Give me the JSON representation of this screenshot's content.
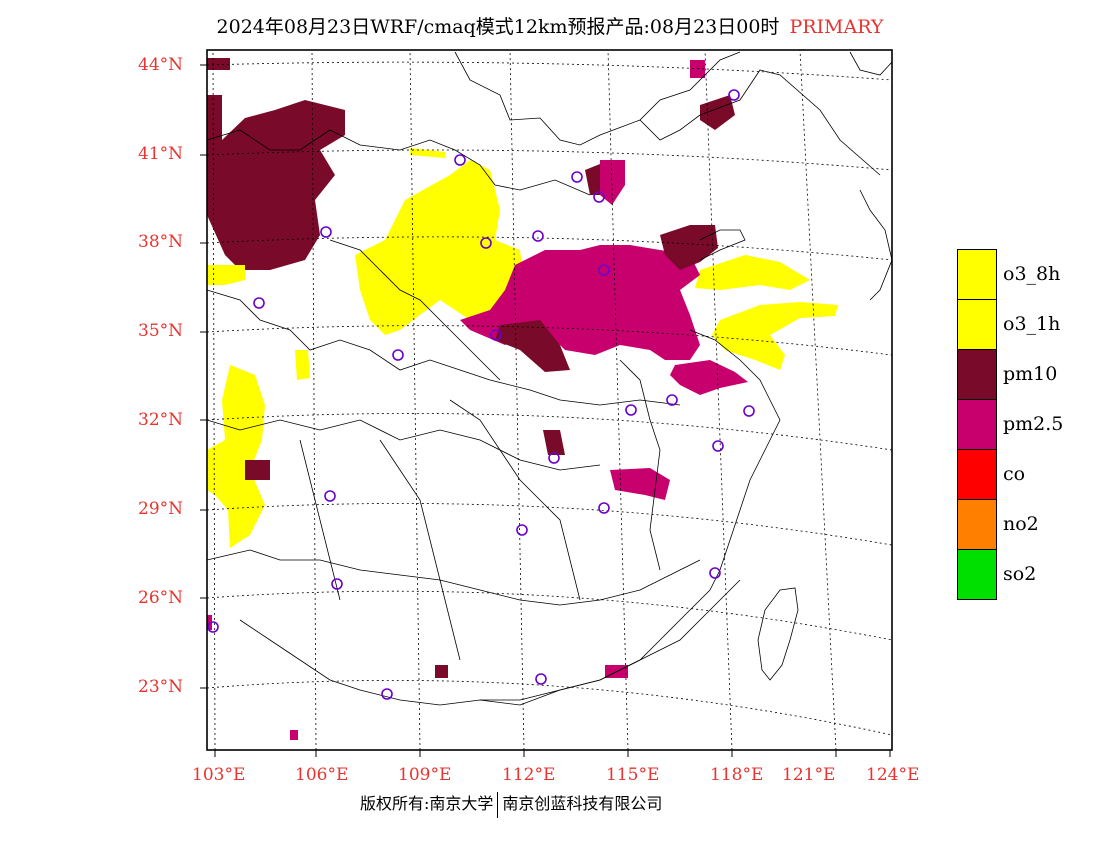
{
  "title": {
    "main": "2024年08月23日WRF/cmaq模式12km预报产品:08月23日00时",
    "tag": "PRIMARY"
  },
  "footer": {
    "left": "版权所有:南京大学",
    "right": "南京创蓝科技有限公司"
  },
  "lat_labels": [
    "44°N",
    "41°N",
    "38°N",
    "35°N",
    "32°N",
    "29°N",
    "26°N",
    "23°N"
  ],
  "lon_labels": [
    "103°E",
    "106°E",
    "109°E",
    "112°E",
    "115°E",
    "118°E",
    "121°E",
    "124°E"
  ],
  "legend": [
    {
      "label": "o3_8h",
      "color": "#ffff00"
    },
    {
      "label": "o3_1h",
      "color": "#ffff00"
    },
    {
      "label": "pm10",
      "color": "#7a0a2a"
    },
    {
      "label": "pm2.5",
      "color": "#c8006e"
    },
    {
      "label": "co",
      "color": "#ff0000"
    },
    {
      "label": "no2",
      "color": "#ff8000"
    },
    {
      "label": "so2",
      "color": "#00e000"
    }
  ],
  "colors": {
    "axis_label": "#e8332e",
    "station_circle": "#6a00cc"
  },
  "icons": {
    "station": "circle-marker-icon"
  }
}
